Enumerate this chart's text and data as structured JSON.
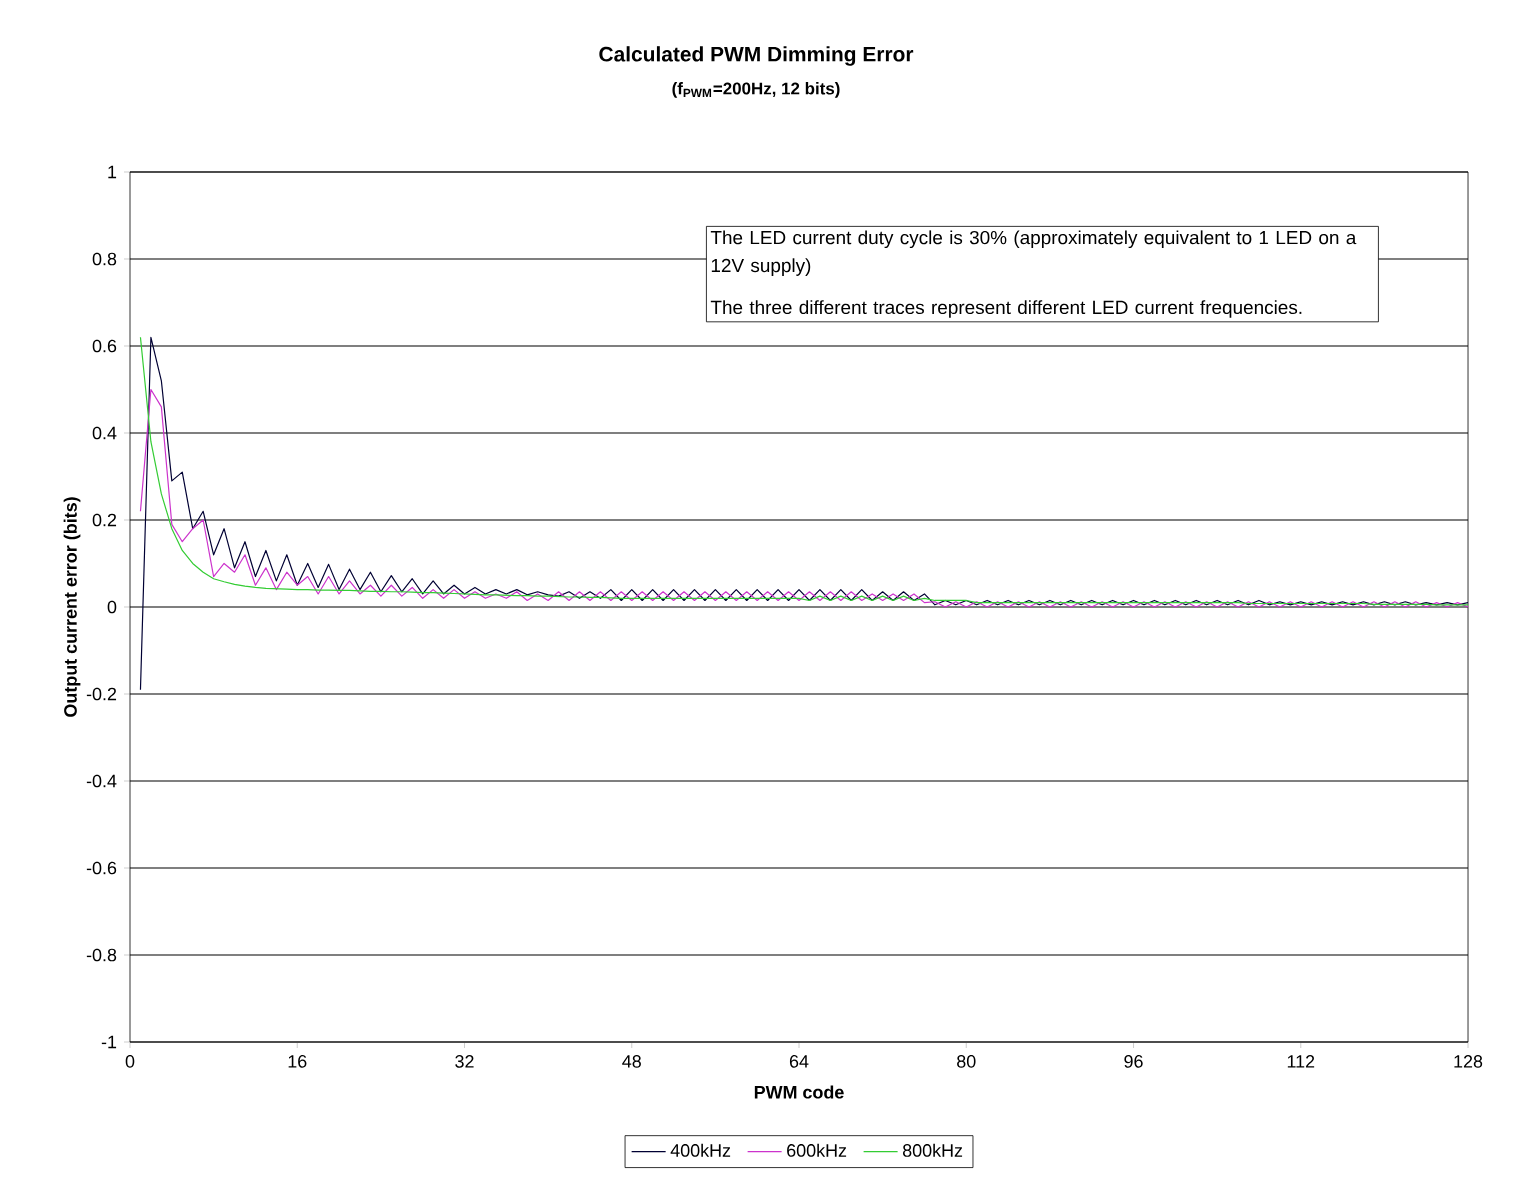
{
  "chart_data": {
    "type": "line",
    "title": "Calculated PWM Dimming Error",
    "subtitle": "(f$_{PWM}$=200Hz, 12 bits)",
    "xlabel": "PWM code",
    "ylabel": "Output current error (bits)",
    "annotations": [
      "The LED current duty cycle is 30% (approximately equivalent to 1 LED on a 12V supply)",
      "The three different traces represent different LED current frequencies."
    ],
    "x": [
      1,
      2,
      3,
      4,
      5,
      6,
      7,
      8,
      9,
      10,
      11,
      12,
      13,
      14,
      15,
      16,
      17,
      18,
      19,
      20,
      21,
      22,
      23,
      24,
      25,
      26,
      27,
      28,
      29,
      30,
      31,
      32,
      33,
      34,
      35,
      36,
      37,
      38,
      39,
      40,
      41,
      42,
      43,
      44,
      45,
      46,
      47,
      48,
      49,
      50,
      51,
      52,
      53,
      54,
      55,
      56,
      57,
      58,
      59,
      60,
      61,
      62,
      63,
      64,
      65,
      66,
      67,
      68,
      69,
      70,
      71,
      72,
      73,
      74,
      75,
      76,
      77,
      78,
      79,
      80,
      81,
      82,
      83,
      84,
      85,
      86,
      87,
      88,
      89,
      90,
      91,
      92,
      93,
      94,
      95,
      96,
      97,
      98,
      99,
      100,
      101,
      102,
      103,
      104,
      105,
      106,
      107,
      108,
      109,
      110,
      111,
      112,
      113,
      114,
      115,
      116,
      117,
      118,
      119,
      120,
      121,
      122,
      123,
      124,
      125,
      126,
      127,
      128
    ],
    "series": [
      {
        "name": "400kHz",
        "color": "#000033",
        "values": [
          -0.19,
          0.62,
          0.52,
          0.29,
          0.31,
          0.18,
          0.22,
          0.12,
          0.18,
          0.09,
          0.15,
          0.07,
          0.13,
          0.06,
          0.12,
          0.05,
          0.1,
          0.045,
          0.098,
          0.04,
          0.087,
          0.04,
          0.08,
          0.035,
          0.072,
          0.035,
          0.065,
          0.03,
          0.06,
          0.03,
          0.05,
          0.03,
          0.045,
          0.03,
          0.04,
          0.03,
          0.04,
          0.028,
          0.035,
          0.028,
          0.025,
          0.035,
          0.02,
          0.035,
          0.02,
          0.04,
          0.015,
          0.04,
          0.015,
          0.04,
          0.015,
          0.04,
          0.015,
          0.04,
          0.015,
          0.04,
          0.015,
          0.04,
          0.015,
          0.04,
          0.015,
          0.04,
          0.015,
          0.04,
          0.015,
          0.04,
          0.015,
          0.04,
          0.015,
          0.04,
          0.015,
          0.035,
          0.015,
          0.035,
          0.015,
          0.03,
          0.005,
          0.015,
          0.005,
          0.015,
          0.005,
          0.015,
          0.005,
          0.015,
          0.005,
          0.015,
          0.005,
          0.015,
          0.005,
          0.015,
          0.005,
          0.015,
          0.005,
          0.015,
          0.005,
          0.015,
          0.005,
          0.015,
          0.005,
          0.015,
          0.005,
          0.015,
          0.005,
          0.015,
          0.005,
          0.015,
          0.005,
          0.015,
          0.005,
          0.012,
          0.005,
          0.012,
          0.005,
          0.012,
          0.005,
          0.012,
          0.005,
          0.012,
          0.005,
          0.012,
          0.005,
          0.012,
          0.005,
          0.01,
          0.005,
          0.01,
          0.005,
          0.01
        ]
      },
      {
        "name": "600kHz",
        "color": "#cc33cc",
        "values": [
          0.22,
          0.5,
          0.46,
          0.19,
          0.15,
          0.18,
          0.2,
          0.07,
          0.1,
          0.08,
          0.12,
          0.05,
          0.09,
          0.04,
          0.08,
          0.05,
          0.07,
          0.03,
          0.07,
          0.03,
          0.06,
          0.03,
          0.05,
          0.025,
          0.05,
          0.025,
          0.045,
          0.02,
          0.04,
          0.02,
          0.04,
          0.02,
          0.035,
          0.02,
          0.03,
          0.02,
          0.035,
          0.015,
          0.03,
          0.015,
          0.035,
          0.015,
          0.035,
          0.015,
          0.035,
          0.015,
          0.035,
          0.015,
          0.035,
          0.015,
          0.035,
          0.015,
          0.035,
          0.015,
          0.035,
          0.015,
          0.035,
          0.015,
          0.035,
          0.015,
          0.035,
          0.015,
          0.035,
          0.015,
          0.035,
          0.015,
          0.035,
          0.015,
          0.035,
          0.015,
          0.03,
          0.015,
          0.03,
          0.015,
          0.03,
          0.01,
          0.012,
          0.0,
          0.012,
          0.0,
          0.012,
          0.0,
          0.012,
          0.0,
          0.012,
          0.0,
          0.012,
          0.0,
          0.012,
          0.0,
          0.012,
          0.0,
          0.012,
          0.0,
          0.012,
          0.0,
          0.012,
          0.0,
          0.012,
          0.0,
          0.012,
          0.0,
          0.012,
          0.0,
          0.012,
          0.0,
          0.012,
          0.0,
          0.012,
          0.0,
          0.012,
          0.0,
          0.012,
          0.0,
          0.012,
          0.0,
          0.012,
          0.0,
          0.012,
          0.0,
          0.012,
          0.0,
          0.012,
          0.0,
          0.01,
          0.0,
          0.01,
          0.0
        ]
      },
      {
        "name": "800kHz",
        "color": "#33cc33",
        "values": [
          0.62,
          0.38,
          0.26,
          0.18,
          0.13,
          0.1,
          0.08,
          0.065,
          0.058,
          0.052,
          0.048,
          0.045,
          0.043,
          0.042,
          0.041,
          0.04,
          0.04,
          0.039,
          0.039,
          0.038,
          0.038,
          0.037,
          0.036,
          0.036,
          0.035,
          0.035,
          0.034,
          0.033,
          0.033,
          0.032,
          0.031,
          0.03,
          0.029,
          0.028,
          0.028,
          0.027,
          0.026,
          0.026,
          0.025,
          0.025,
          0.024,
          0.023,
          0.023,
          0.022,
          0.022,
          0.021,
          0.02,
          0.02,
          0.02,
          0.02,
          0.02,
          0.02,
          0.02,
          0.02,
          0.02,
          0.02,
          0.02,
          0.02,
          0.02,
          0.02,
          0.02,
          0.02,
          0.02,
          0.02,
          0.015,
          0.025,
          0.015,
          0.025,
          0.015,
          0.025,
          0.015,
          0.025,
          0.015,
          0.025,
          0.015,
          0.02,
          0.015,
          0.015,
          0.015,
          0.015,
          0.01,
          0.01,
          0.01,
          0.01,
          0.01,
          0.01,
          0.01,
          0.01,
          0.01,
          0.01,
          0.01,
          0.01,
          0.01,
          0.01,
          0.01,
          0.01,
          0.01,
          0.01,
          0.01,
          0.01,
          0.01,
          0.01,
          0.01,
          0.01,
          0.01,
          0.01,
          0.008,
          0.008,
          0.008,
          0.008,
          0.008,
          0.008,
          0.008,
          0.008,
          0.008,
          0.008,
          0.008,
          0.008,
          0.006,
          0.006,
          0.006,
          0.006,
          0.006,
          0.006,
          0.005,
          0.005,
          0.005,
          0.005
        ]
      }
    ],
    "xlim": [
      0,
      128
    ],
    "ylim": [
      -1,
      1
    ],
    "xticks": [
      0,
      16,
      32,
      48,
      64,
      80,
      96,
      112,
      128
    ],
    "yticks": [
      -1,
      -0.8,
      -0.6,
      -0.4,
      -0.2,
      0,
      0.2,
      0.4,
      0.6,
      0.8,
      1
    ],
    "grid": "y",
    "legend": "bottom",
    "marker": "none",
    "line_style": "solid"
  }
}
